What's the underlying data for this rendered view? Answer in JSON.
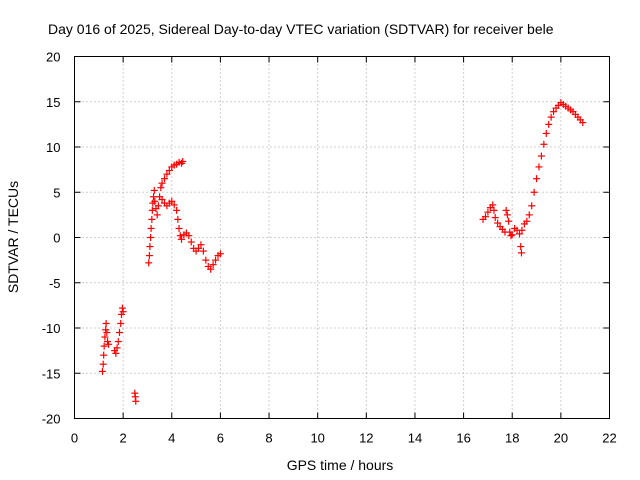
{
  "chart_data": {
    "type": "scatter",
    "title": "Day 016 of 2025, Sidereal Day-to-day VTEC variation (SDTVAR) for receiver bele",
    "xlabel": "GPS time / hours",
    "ylabel": "SDTVAR / TECUs",
    "xlim": [
      0,
      22
    ],
    "ylim": [
      -20,
      20
    ],
    "xticks": [
      0,
      2,
      4,
      6,
      8,
      10,
      12,
      14,
      16,
      18,
      20,
      22
    ],
    "yticks": [
      -20,
      -15,
      -10,
      -5,
      0,
      5,
      10,
      15,
      20
    ],
    "grid": true,
    "marker": "+",
    "color": "#ff0000",
    "series": [
      {
        "name": "SDTVAR",
        "points": [
          [
            1.15,
            -14.8
          ],
          [
            1.18,
            -14.0
          ],
          [
            1.2,
            -13.0
          ],
          [
            1.22,
            -12.0
          ],
          [
            1.25,
            -11.0
          ],
          [
            1.28,
            -10.2
          ],
          [
            1.3,
            -9.5
          ],
          [
            1.33,
            -10.5
          ],
          [
            1.36,
            -11.5
          ],
          [
            1.4,
            -11.8
          ],
          [
            1.65,
            -12.5
          ],
          [
            1.7,
            -12.8
          ],
          [
            1.75,
            -12.2
          ],
          [
            1.8,
            -11.5
          ],
          [
            1.85,
            -10.5
          ],
          [
            1.9,
            -9.5
          ],
          [
            1.93,
            -8.5
          ],
          [
            1.97,
            -7.8
          ],
          [
            2.0,
            -8.2
          ],
          [
            2.48,
            -17.2
          ],
          [
            2.5,
            -17.6
          ],
          [
            2.52,
            -18.1
          ],
          [
            3.05,
            -2.8
          ],
          [
            3.08,
            -2.0
          ],
          [
            3.1,
            -1.0
          ],
          [
            3.13,
            0.0
          ],
          [
            3.15,
            1.0
          ],
          [
            3.18,
            2.0
          ],
          [
            3.2,
            3.0
          ],
          [
            3.22,
            3.8
          ],
          [
            3.25,
            4.5
          ],
          [
            3.28,
            5.2
          ],
          [
            3.3,
            4.0
          ],
          [
            3.35,
            3.2
          ],
          [
            3.4,
            2.5
          ],
          [
            3.45,
            3.5
          ],
          [
            3.5,
            4.5
          ],
          [
            3.55,
            5.5
          ],
          [
            3.6,
            6.0
          ],
          [
            3.7,
            6.5
          ],
          [
            3.8,
            7.0
          ],
          [
            3.9,
            7.4
          ],
          [
            4.0,
            7.8
          ],
          [
            4.1,
            8.0
          ],
          [
            4.2,
            8.1
          ],
          [
            4.3,
            8.3
          ],
          [
            4.4,
            8.2
          ],
          [
            4.45,
            8.4
          ],
          [
            3.6,
            4.2
          ],
          [
            3.7,
            3.8
          ],
          [
            3.8,
            3.5
          ],
          [
            3.9,
            3.8
          ],
          [
            4.0,
            4.0
          ],
          [
            4.1,
            3.6
          ],
          [
            4.2,
            3.0
          ],
          [
            4.25,
            2.0
          ],
          [
            4.3,
            1.0
          ],
          [
            4.35,
            0.2
          ],
          [
            4.4,
            -0.2
          ],
          [
            4.5,
            0.3
          ],
          [
            4.6,
            0.5
          ],
          [
            4.7,
            0.2
          ],
          [
            4.8,
            -0.5
          ],
          [
            4.9,
            -1.2
          ],
          [
            5.0,
            -1.5
          ],
          [
            5.1,
            -1.2
          ],
          [
            5.2,
            -0.8
          ],
          [
            5.3,
            -1.5
          ],
          [
            5.4,
            -2.5
          ],
          [
            5.5,
            -3.2
          ],
          [
            5.6,
            -3.5
          ],
          [
            5.7,
            -3.0
          ],
          [
            5.8,
            -2.5
          ],
          [
            5.9,
            -2.0
          ],
          [
            6.0,
            -1.8
          ],
          [
            16.8,
            2.0
          ],
          [
            16.9,
            2.3
          ],
          [
            17.0,
            2.8
          ],
          [
            17.1,
            3.3
          ],
          [
            17.2,
            3.6
          ],
          [
            17.25,
            3.0
          ],
          [
            17.3,
            2.2
          ],
          [
            17.4,
            1.6
          ],
          [
            17.5,
            1.2
          ],
          [
            17.6,
            0.9
          ],
          [
            17.7,
            0.6
          ],
          [
            17.75,
            3.0
          ],
          [
            17.8,
            2.5
          ],
          [
            17.85,
            1.8
          ],
          [
            17.9,
            0.6
          ],
          [
            17.95,
            0.2
          ],
          [
            18.0,
            0.3
          ],
          [
            18.1,
            1.0
          ],
          [
            18.2,
            0.8
          ],
          [
            18.3,
            0.4
          ],
          [
            18.35,
            -1.0
          ],
          [
            18.38,
            -1.7
          ],
          [
            18.4,
            0.8
          ],
          [
            18.5,
            1.5
          ],
          [
            18.6,
            1.8
          ],
          [
            18.7,
            2.5
          ],
          [
            18.8,
            3.5
          ],
          [
            18.9,
            5.0
          ],
          [
            19.0,
            6.5
          ],
          [
            19.1,
            7.8
          ],
          [
            19.2,
            9.0
          ],
          [
            19.3,
            10.3
          ],
          [
            19.4,
            11.5
          ],
          [
            19.5,
            12.5
          ],
          [
            19.6,
            13.3
          ],
          [
            19.7,
            13.9
          ],
          [
            19.8,
            14.3
          ],
          [
            19.9,
            14.6
          ],
          [
            20.0,
            14.9
          ],
          [
            20.1,
            14.7
          ],
          [
            20.2,
            14.5
          ],
          [
            20.3,
            14.3
          ],
          [
            20.4,
            14.1
          ],
          [
            20.5,
            13.9
          ],
          [
            20.6,
            13.6
          ],
          [
            20.7,
            13.3
          ],
          [
            20.8,
            13.0
          ],
          [
            20.9,
            12.7
          ]
        ]
      }
    ]
  }
}
